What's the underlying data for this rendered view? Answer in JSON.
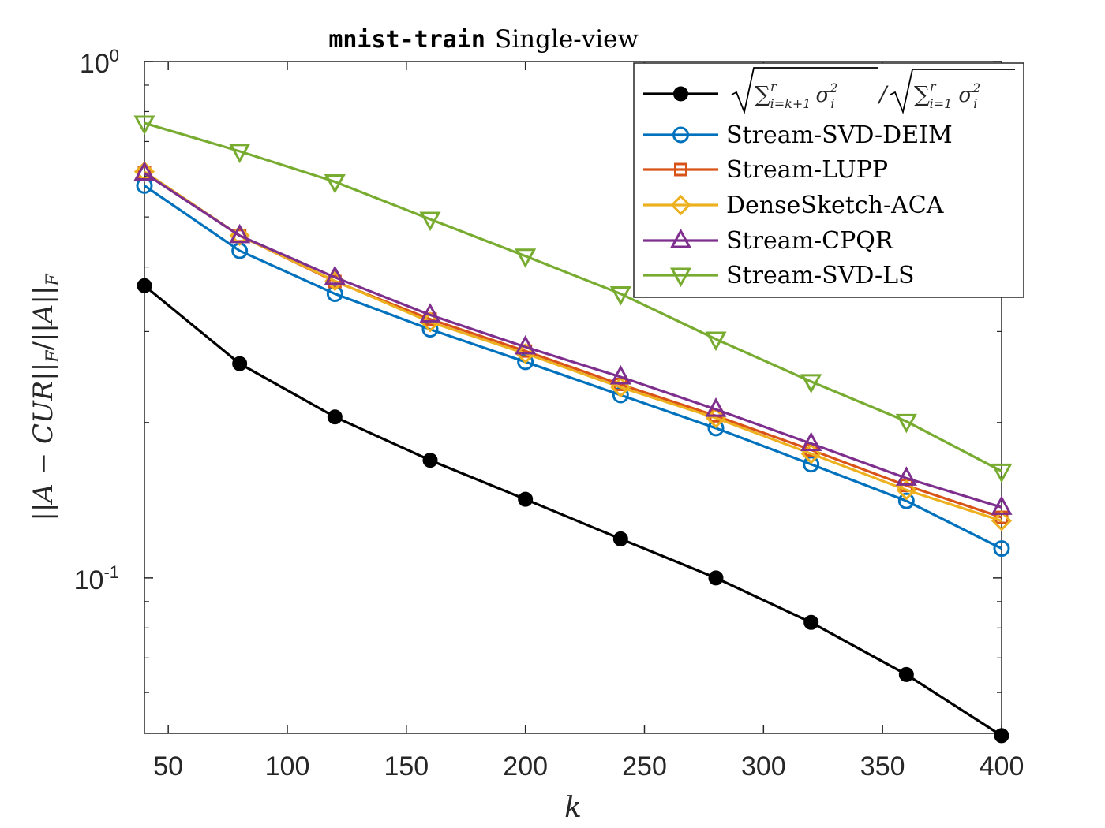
{
  "chart_data": {
    "type": "line",
    "title_mono": "mnist-train",
    "title_rest": "Single-view",
    "xlabel": "k",
    "ylabel": "||A − CUR||_F / ||A||_F",
    "xscale": "linear",
    "yscale": "log",
    "xlim": [
      40,
      400
    ],
    "ylim": [
      0.05,
      1.0
    ],
    "xticks": [
      50,
      100,
      150,
      200,
      250,
      300,
      350,
      400
    ],
    "xtick_labels": [
      "50",
      "100",
      "150",
      "200",
      "250",
      "300",
      "350",
      "400"
    ],
    "yticks": [
      0.1,
      1.0
    ],
    "ytick_labels": [
      {
        "base": "10",
        "exp": "-1"
      },
      {
        "base": "10",
        "exp": "0"
      }
    ],
    "grid": false,
    "legend_position": "top-right",
    "x": [
      40,
      80,
      120,
      160,
      200,
      240,
      280,
      320,
      360,
      400
    ],
    "series": [
      {
        "name": "√(Σᵣᵢ₌ₖ₊₁ σᵢ²) / √(Σᵣᵢ₌₁ σᵢ²)",
        "color": "#000000",
        "marker": "filled-circle",
        "values": [
          0.368,
          0.26,
          0.205,
          0.169,
          0.142,
          0.119,
          0.1,
          0.082,
          0.065,
          0.0495
        ]
      },
      {
        "name": "Stream-SVD-DEIM",
        "color": "#0072BD",
        "marker": "circle",
        "values": [
          0.575,
          0.43,
          0.355,
          0.303,
          0.262,
          0.226,
          0.195,
          0.166,
          0.141,
          0.114
        ]
      },
      {
        "name": "Stream-LUPP",
        "color": "#D95319",
        "marker": "square",
        "values": [
          0.61,
          0.46,
          0.375,
          0.317,
          0.275,
          0.237,
          0.206,
          0.177,
          0.151,
          0.131
        ]
      },
      {
        "name": "DenseSketch-ACA",
        "color": "#EDB120",
        "marker": "diamond",
        "values": [
          0.612,
          0.46,
          0.376,
          0.313,
          0.272,
          0.234,
          0.204,
          0.174,
          0.148,
          0.129
        ]
      },
      {
        "name": "Stream-CPQR",
        "color": "#7E2F8E",
        "marker": "triangle-up",
        "values": [
          0.608,
          0.46,
          0.382,
          0.323,
          0.28,
          0.245,
          0.212,
          0.182,
          0.156,
          0.137
        ]
      },
      {
        "name": "Stream-SVD-LS",
        "color": "#77AC30",
        "marker": "triangle-down",
        "values": [
          0.76,
          0.67,
          0.585,
          0.495,
          0.42,
          0.355,
          0.29,
          0.24,
          0.201,
          0.161
        ]
      }
    ]
  }
}
